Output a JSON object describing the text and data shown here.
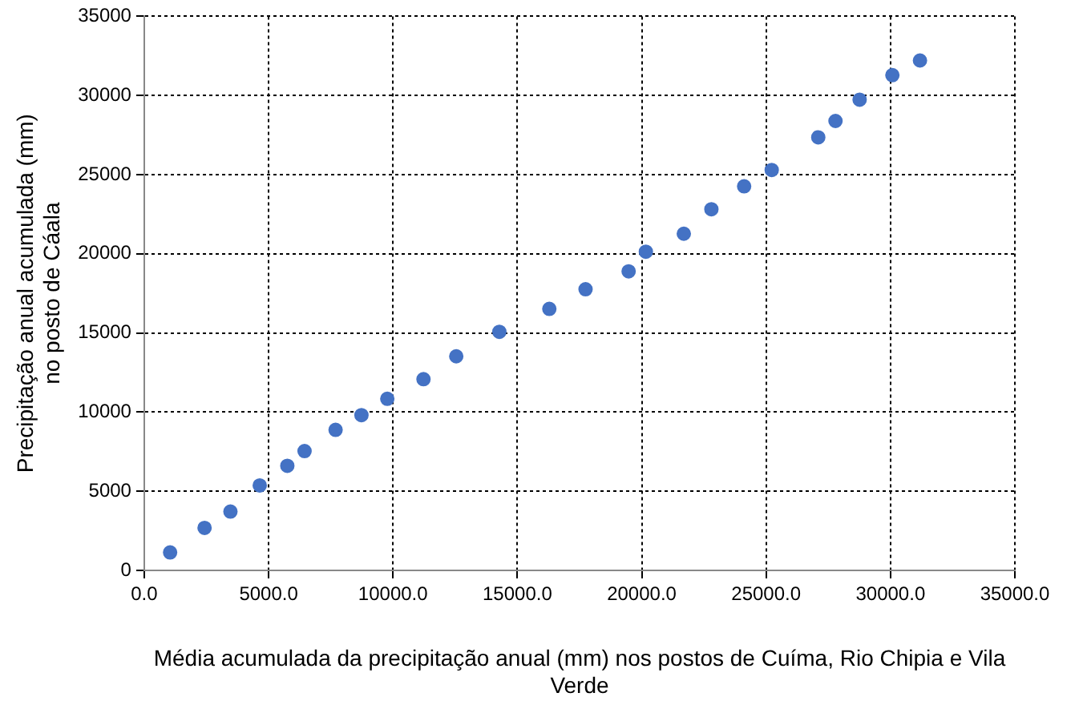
{
  "chart_data": {
    "type": "scatter",
    "xlabel": "Média acumulada da precipitação anual (mm) nos postos de Cuíma, Rio Chipia e Vila Verde",
    "ylabel": "Precipitação anual acumulada (mm)\nno posto de Cáala",
    "x": [
      1040,
      2425,
      3465,
      4643,
      5752,
      6445,
      7692,
      8732,
      9771,
      11226,
      12543,
      14276,
      16285,
      17741,
      19473,
      20166,
      21691,
      22800,
      24116,
      25225,
      27096,
      27789,
      28759,
      30076,
      31185
    ],
    "series": [
      {
        "color": "#4472c4",
        "values": [
          1136,
          2684,
          3717,
          5369,
          6608,
          7537,
          8879,
          9808,
          10840,
          12079,
          13525,
          15073,
          16519,
          17758,
          18894,
          20132,
          21268,
          22816,
          24262,
          25294,
          27359,
          28391,
          29733,
          31282,
          32211
        ]
      }
    ],
    "xlim": [
      0,
      35000
    ],
    "xticks": [
      {
        "value": 0,
        "label": "0.0"
      },
      {
        "value": 5000,
        "label": "5000.0"
      },
      {
        "value": 10000,
        "label": "10000.0"
      },
      {
        "value": 15000,
        "label": "15000.0"
      },
      {
        "value": 20000,
        "label": "20000.0"
      },
      {
        "value": 25000,
        "label": "25000.0"
      },
      {
        "value": 30000,
        "label": "30000.0"
      },
      {
        "value": 35000,
        "label": "35000.0"
      }
    ],
    "ylim": [
      0,
      35000
    ],
    "yticks": [
      0,
      5000,
      10000,
      15000,
      20000,
      25000,
      30000,
      35000
    ],
    "grid": true,
    "marker": "circle",
    "legend": false
  }
}
